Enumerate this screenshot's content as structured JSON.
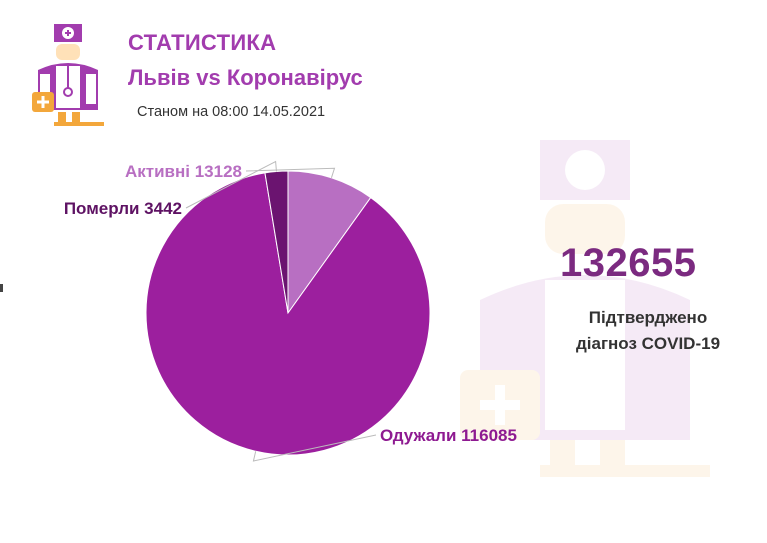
{
  "header": {
    "title": "СТАТИСТИКА",
    "subtitle": "Львів vs Коронавірус",
    "date": "Станом на 08:00 14.05.2021"
  },
  "summary": {
    "total": "132655",
    "label_line1": "Підтверджено",
    "label_line2": "діагноз COVID-19"
  },
  "icons": {
    "logo": "doctor-icon",
    "watermark": "doctor-watermark-icon"
  },
  "colors": {
    "accent": "#a23cae",
    "recovered": "#9c1f9e",
    "died": "#6b1470",
    "active": "#b86fc2",
    "total_number": "#7b2a80"
  },
  "chart_data": {
    "type": "pie",
    "title": "",
    "slices": [
      {
        "label": "Активні",
        "value": 13128,
        "display": "Активні 13128",
        "color": "#b86fc2",
        "label_color": "#b86fc2"
      },
      {
        "label": "Одужали",
        "value": 116085,
        "display": "Одужали 116085",
        "color": "#9c1f9e",
        "label_color": "#8e1a91"
      },
      {
        "label": "Померли",
        "value": 3442,
        "display": "Померли 3442",
        "color": "#6b1470",
        "label_color": "#5e1263"
      }
    ]
  }
}
